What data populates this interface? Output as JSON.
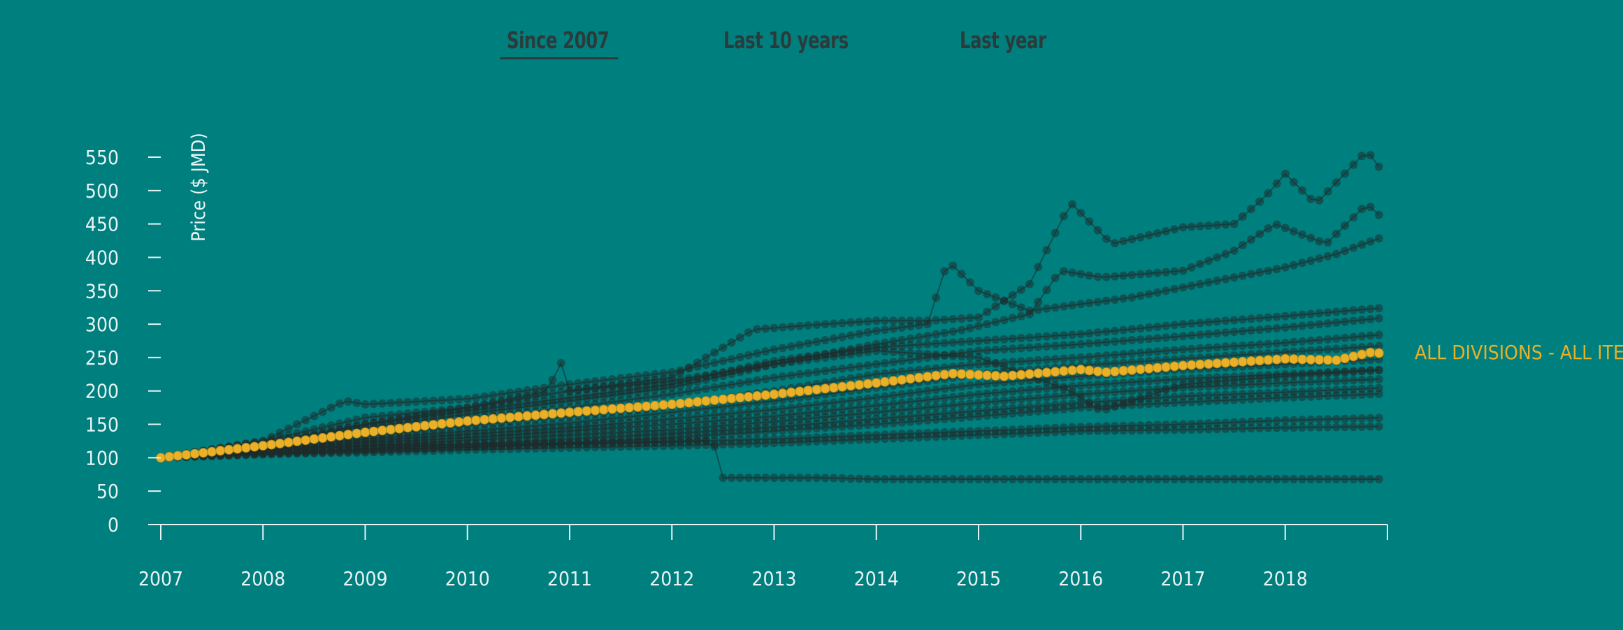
{
  "tabs": [
    {
      "label": "Since 2007",
      "active": true
    },
    {
      "label": "Last 10 years",
      "active": false
    },
    {
      "label": "Last year",
      "active": false
    }
  ],
  "colors": {
    "background": "#007f7f",
    "highlight": "#e8b128",
    "series": "#1e2a2a",
    "axis": "#e9f3f3"
  },
  "chart_data": {
    "type": "line",
    "ylabel": "Price ($ JMD)",
    "xlabel": "",
    "ylim": [
      0,
      550
    ],
    "y_ticks": [
      0,
      50,
      100,
      150,
      200,
      250,
      300,
      350,
      400,
      450,
      500,
      550
    ],
    "xlim": [
      2007,
      2019
    ],
    "x_ticks": [
      2007,
      2008,
      2009,
      2010,
      2011,
      2012,
      2013,
      2014,
      2015,
      2016,
      2017,
      2018
    ],
    "grid": false,
    "highlight_label": "ALL DIVISIONS - ALL ITEMS",
    "series": [
      {
        "name": "ALL DIVISIONS - ALL ITEMS",
        "highlight": true,
        "x": [
          2007,
          2008,
          2009,
          2010,
          2011,
          2012,
          2013,
          2014,
          2014.75,
          2015.25,
          2016,
          2016.25,
          2017,
          2018,
          2018.5,
          2018.85,
          2019
        ],
        "values": [
          100,
          118,
          138,
          155,
          168,
          180,
          195,
          212,
          226,
          222,
          232,
          228,
          238,
          248,
          246,
          258,
          255
        ]
      },
      {
        "x": [
          2007,
          2008,
          2008.8,
          2009,
          2010,
          2011,
          2012,
          2013,
          2014,
          2014.5,
          2014.7,
          2015,
          2015.5,
          2016,
          2016.5,
          2017,
          2018,
          2018.5,
          2019
        ],
        "values": [
          100,
          125,
          185,
          180,
          188,
          210,
          228,
          262,
          290,
          300,
          395,
          350,
          320,
          330,
          340,
          355,
          385,
          405,
          433
        ]
      },
      {
        "x": [
          2007,
          2008,
          2009,
          2010,
          2011,
          2012,
          2013,
          2014,
          2014.8,
          2015.5,
          2015.8,
          2016.2,
          2017,
          2017.5,
          2017.9,
          2018.4,
          2018.8,
          2019
        ],
        "values": [
          100,
          120,
          145,
          165,
          185,
          205,
          240,
          270,
          290,
          315,
          380,
          370,
          380,
          410,
          450,
          420,
          480,
          452
        ]
      },
      {
        "x": [
          2007,
          2008,
          2009,
          2010,
          2011,
          2012,
          2012.8,
          2013.5,
          2014,
          2014.5,
          2015,
          2015.5,
          2015.9,
          2016.3,
          2017,
          2017.5,
          2017.8,
          2018,
          2018.3,
          2018.8,
          2019
        ],
        "values": [
          100,
          125,
          160,
          175,
          200,
          220,
          292,
          300,
          305,
          305,
          310,
          360,
          482,
          420,
          445,
          450,
          490,
          525,
          480,
          560,
          518
        ]
      },
      {
        "x": [
          2007,
          2008,
          2009,
          2010,
          2011,
          2012,
          2013,
          2014,
          2015,
          2016,
          2017,
          2018,
          2019
        ],
        "values": [
          100,
          122,
          150,
          170,
          190,
          210,
          245,
          265,
          275,
          285,
          300,
          312,
          325
        ]
      },
      {
        "x": [
          2007,
          2008,
          2009,
          2010,
          2011,
          2012,
          2013,
          2014,
          2015,
          2016,
          2017,
          2018,
          2019
        ],
        "values": [
          100,
          118,
          140,
          158,
          175,
          195,
          220,
          240,
          260,
          270,
          282,
          295,
          310
        ]
      },
      {
        "x": [
          2007,
          2008,
          2009,
          2010,
          2011,
          2012,
          2013,
          2014,
          2015,
          2016,
          2017,
          2018,
          2019
        ],
        "values": [
          100,
          116,
          132,
          148,
          162,
          178,
          200,
          225,
          240,
          250,
          262,
          272,
          285
        ]
      },
      {
        "x": [
          2007,
          2008,
          2009,
          2010,
          2011,
          2012,
          2013,
          2014,
          2015,
          2016,
          2017,
          2018,
          2019
        ],
        "values": [
          100,
          114,
          128,
          140,
          152,
          168,
          185,
          205,
          225,
          238,
          248,
          258,
          268
        ]
      },
      {
        "x": [
          2007,
          2008,
          2009,
          2010,
          2011,
          2012,
          2013,
          2014,
          2015,
          2016,
          2017,
          2018,
          2019
        ],
        "values": [
          100,
          112,
          125,
          135,
          145,
          158,
          172,
          190,
          210,
          222,
          232,
          240,
          248
        ]
      },
      {
        "x": [
          2007,
          2008,
          2009,
          2010,
          2011,
          2012,
          2013,
          2014,
          2015,
          2016,
          2017,
          2018,
          2019
        ],
        "values": [
          100,
          110,
          122,
          130,
          140,
          150,
          162,
          178,
          195,
          208,
          218,
          225,
          232
        ]
      },
      {
        "x": [
          2007,
          2008,
          2009,
          2010,
          2011,
          2012,
          2013,
          2014,
          2015,
          2016,
          2017,
          2018,
          2019
        ],
        "values": [
          100,
          108,
          118,
          126,
          134,
          142,
          154,
          168,
          182,
          195,
          205,
          212,
          218
        ]
      },
      {
        "x": [
          2007,
          2008,
          2009,
          2010,
          2011,
          2012,
          2013,
          2014,
          2015,
          2016,
          2017,
          2018,
          2019
        ],
        "values": [
          100,
          106,
          114,
          120,
          128,
          136,
          146,
          158,
          170,
          182,
          192,
          198,
          205
        ]
      },
      {
        "x": [
          2007,
          2008,
          2009,
          2010,
          2011,
          2012,
          2013,
          2014,
          2015,
          2016,
          2017,
          2018,
          2019
        ],
        "values": [
          100,
          105,
          110,
          116,
          122,
          130,
          140,
          150,
          162,
          175,
          183,
          190,
          196
        ]
      },
      {
        "x": [
          2007,
          2008,
          2009,
          2010,
          2010.8,
          2010.9,
          2011,
          2012,
          2013,
          2014,
          2015,
          2015.9,
          2016.2,
          2017,
          2018,
          2019
        ],
        "values": [
          100,
          115,
          150,
          175,
          200,
          250,
          200,
          215,
          240,
          260,
          250,
          200,
          170,
          210,
          222,
          232
        ]
      },
      {
        "x": [
          2007,
          2008,
          2009,
          2010,
          2011,
          2012,
          2013,
          2014,
          2015,
          2016,
          2017,
          2018,
          2019
        ],
        "values": [
          100,
          108,
          112,
          116,
          120,
          124,
          128,
          134,
          140,
          146,
          150,
          156,
          160
        ]
      },
      {
        "x": [
          2007,
          2008,
          2009,
          2010,
          2011,
          2012,
          2013,
          2014,
          2015,
          2016,
          2017,
          2018,
          2019
        ],
        "values": [
          100,
          106,
          108,
          112,
          115,
          118,
          122,
          128,
          134,
          140,
          142,
          145,
          147
        ]
      },
      {
        "x": [
          2007,
          2008,
          2009,
          2010,
          2011,
          2012,
          2012.4,
          2012.5,
          2013,
          2013.4,
          2014,
          2015,
          2016,
          2017,
          2018,
          2019
        ],
        "values": [
          100,
          112,
          118,
          120,
          122,
          124,
          126,
          70,
          70,
          70,
          68,
          68,
          68,
          68,
          68,
          68
        ]
      }
    ]
  }
}
